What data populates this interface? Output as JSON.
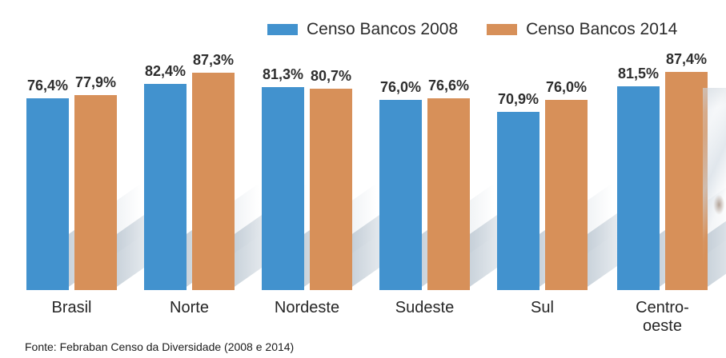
{
  "chart_data": {
    "type": "bar",
    "title": "",
    "categories": [
      "Brasil",
      "Norte",
      "Nordeste",
      "Sudeste",
      "Sul",
      "Centro-oeste"
    ],
    "series": [
      {
        "name": "Censo Bancos 2008",
        "color": "#4292CE",
        "values": [
          76.4,
          82.4,
          81.3,
          76.0,
          70.9,
          81.5
        ],
        "labels": [
          "76,4%",
          "82,4%",
          "81,3%",
          "76,0%",
          "70,9%",
          "81,5%"
        ]
      },
      {
        "name": "Censo Bancos 2014",
        "color": "#D79059",
        "values": [
          77.9,
          87.3,
          80.7,
          76.6,
          76.0,
          87.4
        ],
        "labels": [
          "77,9%",
          "87,3%",
          "80,7%",
          "76,6%",
          "76,0%",
          "87,4%"
        ]
      }
    ],
    "legend_position": "top",
    "grid": false,
    "yaxis_visible": false,
    "axis_truncated": true,
    "value_format": "percent-comma-decimal"
  },
  "source": "Fonte: Febraban Censo da Diversidade (2008 e 2014)",
  "colors": {
    "bar_2008": "#4292CE",
    "bar_2014": "#D79059",
    "value_text": "#2e2e2e",
    "shadow": "#B2BFCB",
    "background": "#FFFFFF"
  }
}
